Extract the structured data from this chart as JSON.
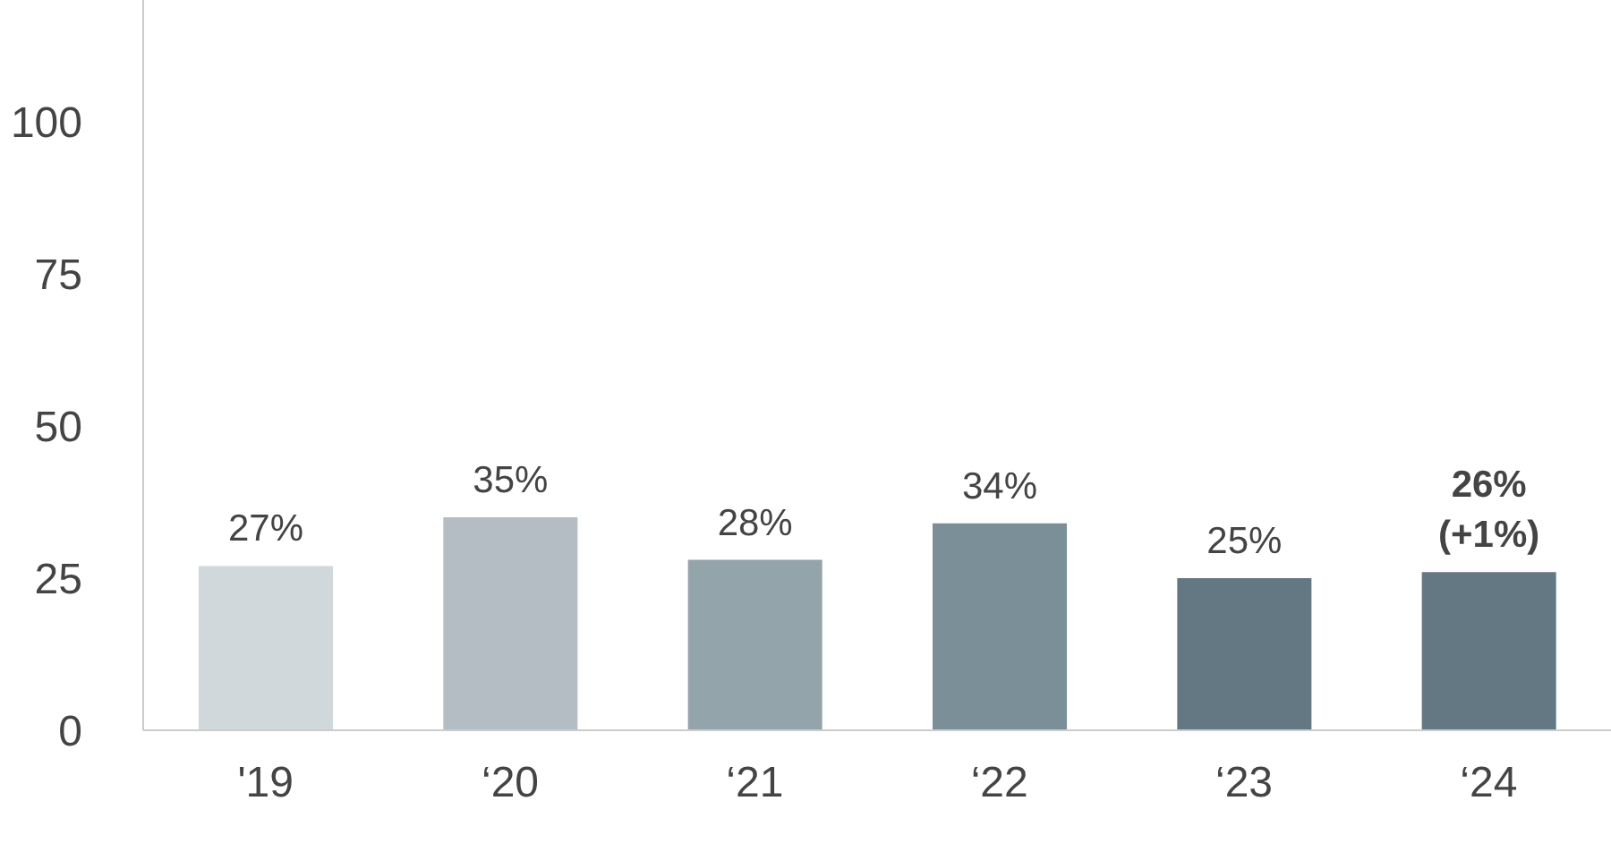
{
  "chart_data": {
    "type": "bar",
    "categories": [
      "'19",
      "‘20",
      "‘21",
      "‘22",
      "‘23",
      "‘24"
    ],
    "values": [
      27,
      35,
      28,
      34,
      25,
      26
    ],
    "colors": [
      "#d0d8db",
      "#b3bdc3",
      "#94a4ab",
      "#7b8f99",
      "#637883",
      "#637883"
    ],
    "value_labels": [
      "27%",
      "35%",
      "28%",
      "34%",
      "25%",
      "26% (+1%)"
    ],
    "ylim": [
      0,
      120
    ],
    "yticks": [
      0,
      25,
      50,
      75,
      100
    ],
    "grid": false,
    "legend": false
  }
}
